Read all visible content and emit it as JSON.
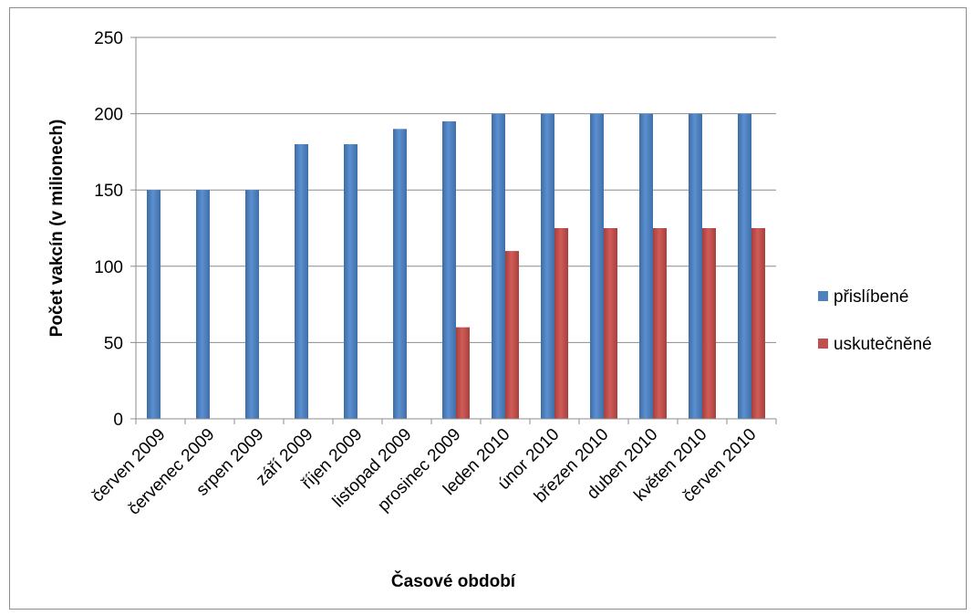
{
  "chart_data": {
    "type": "bar",
    "title": "",
    "xlabel": "Časové období",
    "ylabel": "Počet vakcín (v milionech)",
    "ylim": [
      0,
      250
    ],
    "yticks": [
      0,
      50,
      100,
      150,
      200,
      250
    ],
    "grid": true,
    "legend_position": "right",
    "categories": [
      "červen 2009",
      "červenec 2009",
      "srpen 2009",
      "září 2009",
      "říjen 2009",
      "listopad 2009",
      "prosinec 2009",
      "leden 2010",
      "únor 2010",
      "březen 2010",
      "duben 2010",
      "květen 2010",
      "červen 2010"
    ],
    "series": [
      {
        "name": "přislíbené",
        "color": "#4f81bd",
        "values": [
          150,
          150,
          150,
          180,
          180,
          190,
          195,
          200,
          200,
          200,
          200,
          200,
          200
        ]
      },
      {
        "name": "uskutečněné",
        "color": "#c0504d",
        "values": [
          null,
          null,
          null,
          null,
          null,
          null,
          60,
          110,
          125,
          125,
          125,
          125,
          125
        ]
      }
    ]
  }
}
